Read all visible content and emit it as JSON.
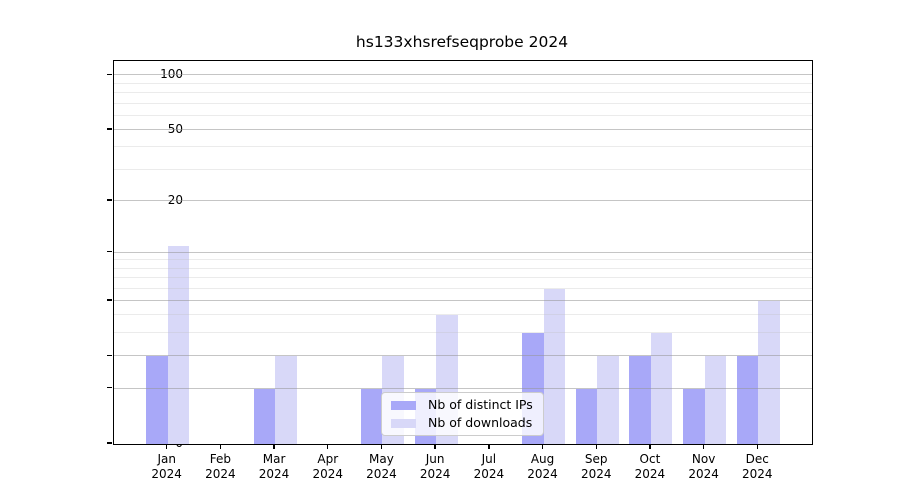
{
  "figure_title": "hs133xhsrefseqprobe 2024",
  "colors": {
    "bar_distinct_ips": "#a8a8f8",
    "bar_downloads": "#d8d8f8",
    "grid_major": "#c8c8c8",
    "grid_minor": "#ebebeb",
    "axis": "#000000",
    "legend_border": "#cccccc"
  },
  "chart_data": {
    "type": "bar",
    "title": "hs133xhsrefseqprobe 2024",
    "categories": [
      "Jan 2024",
      "Feb 2024",
      "Mar 2024",
      "Apr 2024",
      "May 2024",
      "Jun 2024",
      "Jul 2024",
      "Aug 2024",
      "Sep 2024",
      "Oct 2024",
      "Nov 2024",
      "Dec 2024"
    ],
    "series": [
      {
        "name": "Nb of distinct IPs",
        "color": "#a8a8f8",
        "values": [
          2,
          0,
          1,
          0,
          1,
          1,
          0,
          3,
          1,
          2,
          1,
          2
        ]
      },
      {
        "name": "Nb of downloads",
        "color": "#d8d8f8",
        "values": [
          11,
          0,
          2,
          0,
          2,
          4,
          0,
          6,
          2,
          3,
          2,
          5
        ]
      }
    ],
    "xlabel": "",
    "ylabel": "",
    "yscale": "log1p",
    "ylim": [
      0,
      120
    ],
    "yticks": [
      0,
      1,
      2,
      5,
      10,
      20,
      50,
      100
    ],
    "yticks_minor": [
      3,
      4,
      6,
      7,
      8,
      9,
      30,
      40,
      60,
      70,
      80,
      90
    ],
    "grid": true,
    "grid_above_bars": true,
    "legend_position": "lower center"
  }
}
